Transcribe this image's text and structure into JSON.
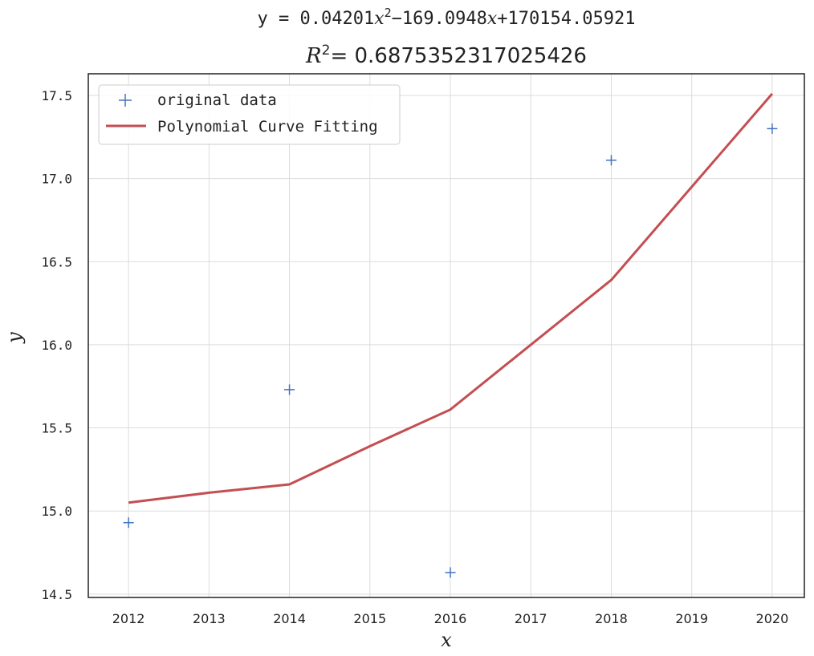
{
  "chart_data": {
    "type": "line",
    "title_line1_prefix": "y = 0.04201",
    "title_line1_mid": "−169.0948",
    "title_line1_suffix": "+170154.05921",
    "title_line2_value": "= 0.6875352317025426",
    "xlabel": "x",
    "ylabel": "y",
    "xlim": [
      2011.5,
      2020.4
    ],
    "ylim": [
      14.48,
      17.63
    ],
    "x_ticks": [
      2012,
      2013,
      2014,
      2015,
      2016,
      2017,
      2018,
      2019,
      2020
    ],
    "x_tick_labels": [
      "2012",
      "2013",
      "2014",
      "2015",
      "2016",
      "2017",
      "2018",
      "2019",
      "2020"
    ],
    "y_ticks": [
      14.5,
      15.0,
      15.5,
      16.0,
      16.5,
      17.0,
      17.5
    ],
    "y_tick_labels": [
      "14.5",
      "15.0",
      "15.5",
      "16.0",
      "16.5",
      "17.0",
      "17.5"
    ],
    "grid": true,
    "legend_position": "top-left",
    "series": [
      {
        "name": "original data",
        "kind": "scatter",
        "marker": "+",
        "color": "#4472c4",
        "x": [
          2012,
          2014,
          2016,
          2018,
          2020
        ],
        "y": [
          14.93,
          15.73,
          14.63,
          17.11,
          17.3
        ]
      },
      {
        "name": "Polynomial Curve Fitting",
        "kind": "line",
        "color": "#c44e52",
        "x": [
          2012,
          2013,
          2014,
          2015,
          2016,
          2017,
          2018,
          2019,
          2020
        ],
        "y": [
          15.05,
          15.11,
          15.16,
          15.39,
          15.61,
          16.0,
          16.39,
          16.95,
          17.51
        ]
      }
    ]
  }
}
